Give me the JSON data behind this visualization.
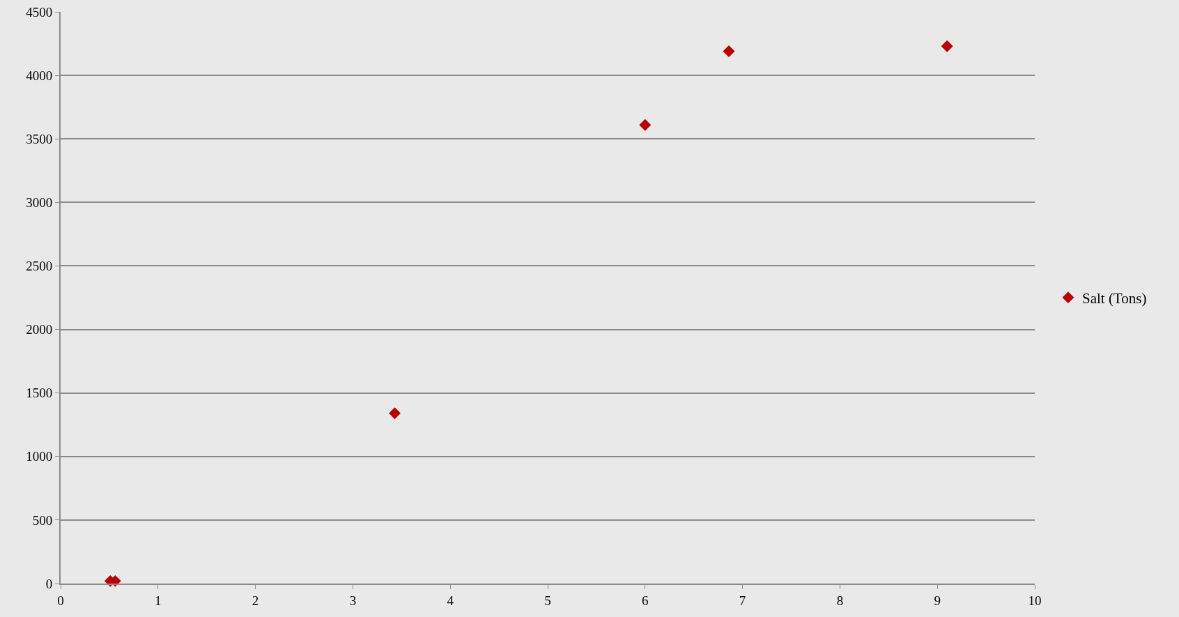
{
  "chart_data": {
    "type": "scatter",
    "x": [
      0.51,
      0.56,
      3.43,
      6.0,
      6.86,
      9.1
    ],
    "series": [
      {
        "name": "Salt (Tons)",
        "color": "#b80000",
        "values": [
          20,
          20,
          1340,
          3610,
          4190,
          4230
        ]
      }
    ],
    "xlim": [
      0,
      10
    ],
    "xticks": [
      0,
      1,
      2,
      3,
      4,
      5,
      6,
      7,
      8,
      9,
      10
    ],
    "ylim": [
      0,
      4500
    ],
    "yticks": [
      0,
      500,
      1000,
      1500,
      2000,
      2500,
      3000,
      3500,
      4000,
      4500
    ],
    "grid": "y",
    "legend": "right",
    "marker": "diamond"
  }
}
